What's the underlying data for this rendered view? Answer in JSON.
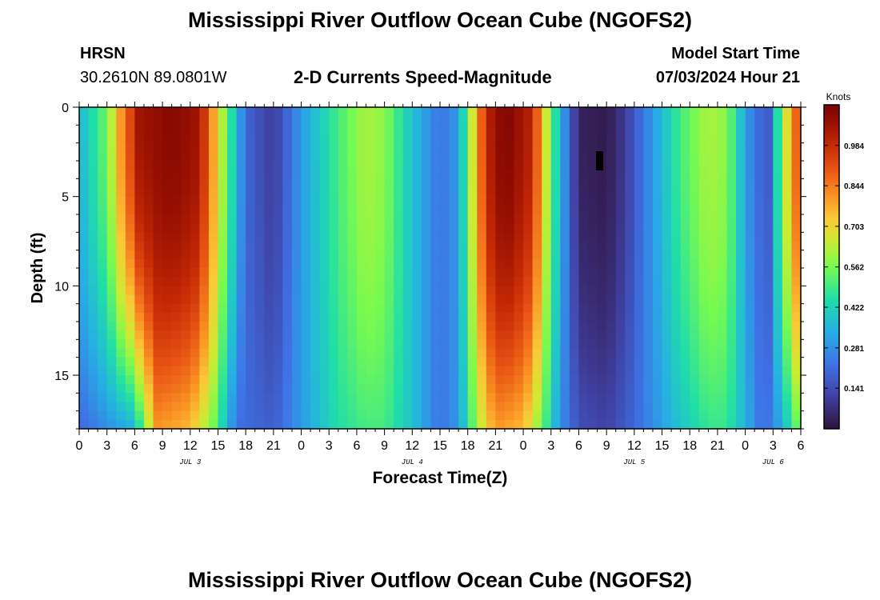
{
  "page": {
    "title_top": "Mississippi River Outflow Ocean Cube (NGOFS2)",
    "title_bottom": "Mississippi River Outflow Ocean Cube (NGOFS2)",
    "station_id": "HRSN",
    "station_coords": "30.2610N  89.0801W",
    "plot_title": "2-D Currents Speed-Magnitude",
    "model_start_label": "Model Start Time",
    "model_start_value": "07/03/2024 Hour 21"
  },
  "chart_data": {
    "type": "heatmap",
    "title": "2-D Currents Speed-Magnitude",
    "xlabel": "Forecast Time(Z)",
    "ylabel": "Depth (ft)",
    "x_hours_range": [
      0,
      78
    ],
    "y_range_ft": [
      0,
      18
    ],
    "y_reversed": true,
    "x_ticks": [
      "0",
      "3",
      "6",
      "9",
      "12",
      "15",
      "18",
      "21",
      "0",
      "3",
      "6",
      "9",
      "12",
      "15",
      "18",
      "21",
      "0",
      "3",
      "6",
      "9",
      "12",
      "15",
      "18",
      "21",
      "0",
      "3",
      "6"
    ],
    "y_ticks": [
      "0",
      "5",
      "10",
      "15"
    ],
    "date_labels": [
      {
        "text": "JUL 3",
        "hour": 12
      },
      {
        "text": "JUL 4",
        "hour": 36
      },
      {
        "text": "JUL 5",
        "hour": 60
      },
      {
        "text": "JUL 6",
        "hour": 75
      }
    ],
    "colorbar": {
      "unit": "Knots",
      "min": 0.0,
      "max": 1.125,
      "ticks": [
        0.141,
        0.281,
        0.422,
        0.562,
        0.703,
        0.844,
        0.984
      ],
      "tick_labels": [
        "0.141",
        "0.281",
        "0.422",
        "0.562",
        "0.703",
        "0.844",
        "0.984"
      ]
    },
    "speed_profile_surface": [
      {
        "hour": 0,
        "knots": 0.35
      },
      {
        "hour": 1.5,
        "knots": 0.45
      },
      {
        "hour": 3,
        "knots": 0.55
      },
      {
        "hour": 4.5,
        "knots": 0.8
      },
      {
        "hour": 6.5,
        "knots": 1.05
      },
      {
        "hour": 10,
        "knots": 1.1
      },
      {
        "hour": 13,
        "knots": 1.05
      },
      {
        "hour": 15,
        "knots": 0.7
      },
      {
        "hour": 16.5,
        "knots": 0.45
      },
      {
        "hour": 18,
        "knots": 0.2
      },
      {
        "hour": 21,
        "knots": 0.1
      },
      {
        "hour": 24,
        "knots": 0.3
      },
      {
        "hour": 28,
        "knots": 0.5
      },
      {
        "hour": 31,
        "knots": 0.62
      },
      {
        "hour": 33,
        "knots": 0.58
      },
      {
        "hour": 36,
        "knots": 0.38
      },
      {
        "hour": 39,
        "knots": 0.22
      },
      {
        "hour": 41,
        "knots": 0.3
      },
      {
        "hour": 42,
        "knots": 0.55
      },
      {
        "hour": 44,
        "knots": 1.0
      },
      {
        "hour": 46,
        "knots": 1.12
      },
      {
        "hour": 49,
        "knots": 1.0
      },
      {
        "hour": 50.5,
        "knots": 0.65
      },
      {
        "hour": 52,
        "knots": 0.35
      },
      {
        "hour": 54,
        "knots": 0.04
      },
      {
        "hour": 57,
        "knots": 0.02
      },
      {
        "hour": 59,
        "knots": 0.1
      },
      {
        "hour": 62,
        "knots": 0.3
      },
      {
        "hour": 65,
        "knots": 0.5
      },
      {
        "hour": 68,
        "knots": 0.62
      },
      {
        "hour": 70,
        "knots": 0.58
      },
      {
        "hour": 71.5,
        "knots": 0.38
      },
      {
        "hour": 73,
        "knots": 0.22
      },
      {
        "hour": 74.5,
        "knots": 0.18
      },
      {
        "hour": 75.5,
        "knots": 0.45
      },
      {
        "hour": 77,
        "knots": 0.8
      },
      {
        "hour": 78,
        "knots": 0.95
      }
    ],
    "speed_profile_bottom": [
      {
        "hour": 0,
        "knots": 0.2
      },
      {
        "hour": 6,
        "knots": 0.35
      },
      {
        "hour": 7,
        "knots": 0.55
      },
      {
        "hour": 8.5,
        "knots": 0.8
      },
      {
        "hour": 12,
        "knots": 0.75
      },
      {
        "hour": 14.5,
        "knots": 0.55
      },
      {
        "hour": 16,
        "knots": 0.35
      },
      {
        "hour": 17,
        "knots": 0.22
      },
      {
        "hour": 21,
        "knots": 0.18
      },
      {
        "hour": 24,
        "knots": 0.3
      },
      {
        "hour": 28,
        "knots": 0.45
      },
      {
        "hour": 31,
        "knots": 0.5
      },
      {
        "hour": 33,
        "knots": 0.5
      },
      {
        "hour": 36,
        "knots": 0.38
      },
      {
        "hour": 39,
        "knots": 0.22
      },
      {
        "hour": 41,
        "knots": 0.3
      },
      {
        "hour": 42,
        "knots": 0.45
      },
      {
        "hour": 43,
        "knots": 0.6
      },
      {
        "hour": 45,
        "knots": 0.8
      },
      {
        "hour": 48,
        "knots": 0.75
      },
      {
        "hour": 50,
        "knots": 0.55
      },
      {
        "hour": 52,
        "knots": 0.28
      },
      {
        "hour": 54,
        "knots": 0.15
      },
      {
        "hour": 57,
        "knots": 0.12
      },
      {
        "hour": 60,
        "knots": 0.2
      },
      {
        "hour": 64,
        "knots": 0.35
      },
      {
        "hour": 68,
        "knots": 0.48
      },
      {
        "hour": 70,
        "knots": 0.48
      },
      {
        "hour": 72,
        "knots": 0.35
      },
      {
        "hour": 74,
        "knots": 0.2
      },
      {
        "hour": 75.5,
        "knots": 0.3
      },
      {
        "hour": 77,
        "knots": 0.45
      },
      {
        "hour": 78,
        "knots": 0.6
      }
    ]
  }
}
